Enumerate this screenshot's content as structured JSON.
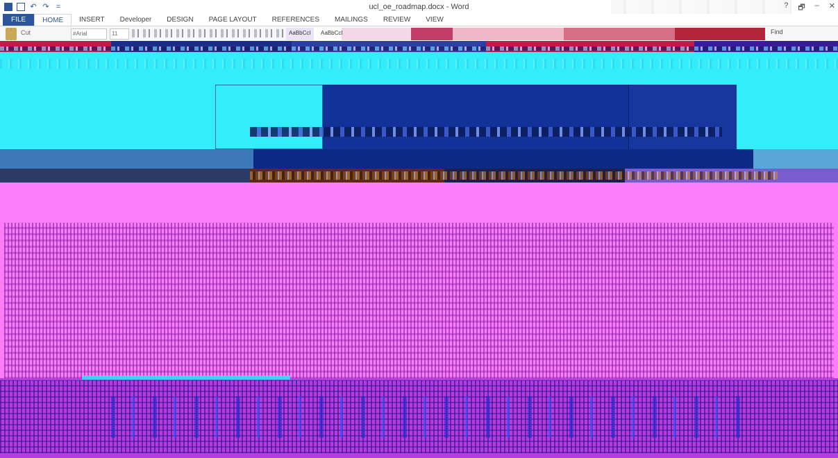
{
  "window": {
    "title": "ucl_oe_roadmap.docx - Word",
    "controls": {
      "help": "?",
      "minimize": "–",
      "restore": "🗗",
      "close": "✕"
    }
  },
  "quick_access": {
    "undo": "↶",
    "redo": "↷",
    "customize": "="
  },
  "tabs": [
    {
      "label": "FILE"
    },
    {
      "label": "HOME"
    },
    {
      "label": "INSERT"
    },
    {
      "label": "Developer"
    },
    {
      "label": "DESIGN"
    },
    {
      "label": "PAGE LAYOUT"
    },
    {
      "label": "REFERENCES"
    },
    {
      "label": "MAILINGS"
    },
    {
      "label": "REVIEW"
    },
    {
      "label": "VIEW"
    }
  ],
  "ribbon": {
    "cut_label": "Cut",
    "font_name": "#Arial",
    "font_size": "11",
    "style_normal": "AaBbCcI",
    "style_nospacing": "AaBbCcI",
    "find_label": "Find"
  },
  "colors": {
    "word_blue": "#2b579a",
    "cyan_band": "#33eefa",
    "page_magenta": "#fc7df8",
    "page_purple": "#b23ee0",
    "header_blue": "#12329a"
  },
  "icons": {
    "word_logo": "word-logo-icon",
    "save": "save-icon",
    "paste": "paste-icon"
  }
}
